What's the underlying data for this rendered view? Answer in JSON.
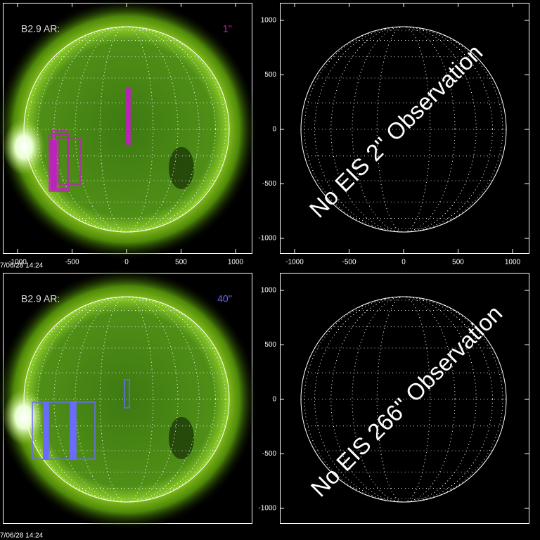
{
  "panels": [
    {
      "label": "B2.9 AR:",
      "scale": "1''",
      "timestamp": "7/06/28 14:24",
      "xticks": [
        -1000,
        -500,
        0,
        500,
        1000
      ]
    },
    {
      "message": "No EIS 2'' Observation",
      "xticks": [
        -1000,
        -500,
        0,
        500,
        1000
      ],
      "yticks": [
        -1000,
        -500,
        0,
        500,
        1000
      ]
    },
    {
      "label": "B2.9 AR:",
      "scale": "40''",
      "timestamp": "7/06/28 14:24"
    },
    {
      "message": "No EIS 266'' Observation",
      "yticks": [
        -1000,
        -500,
        0,
        500,
        1000
      ]
    }
  ]
}
